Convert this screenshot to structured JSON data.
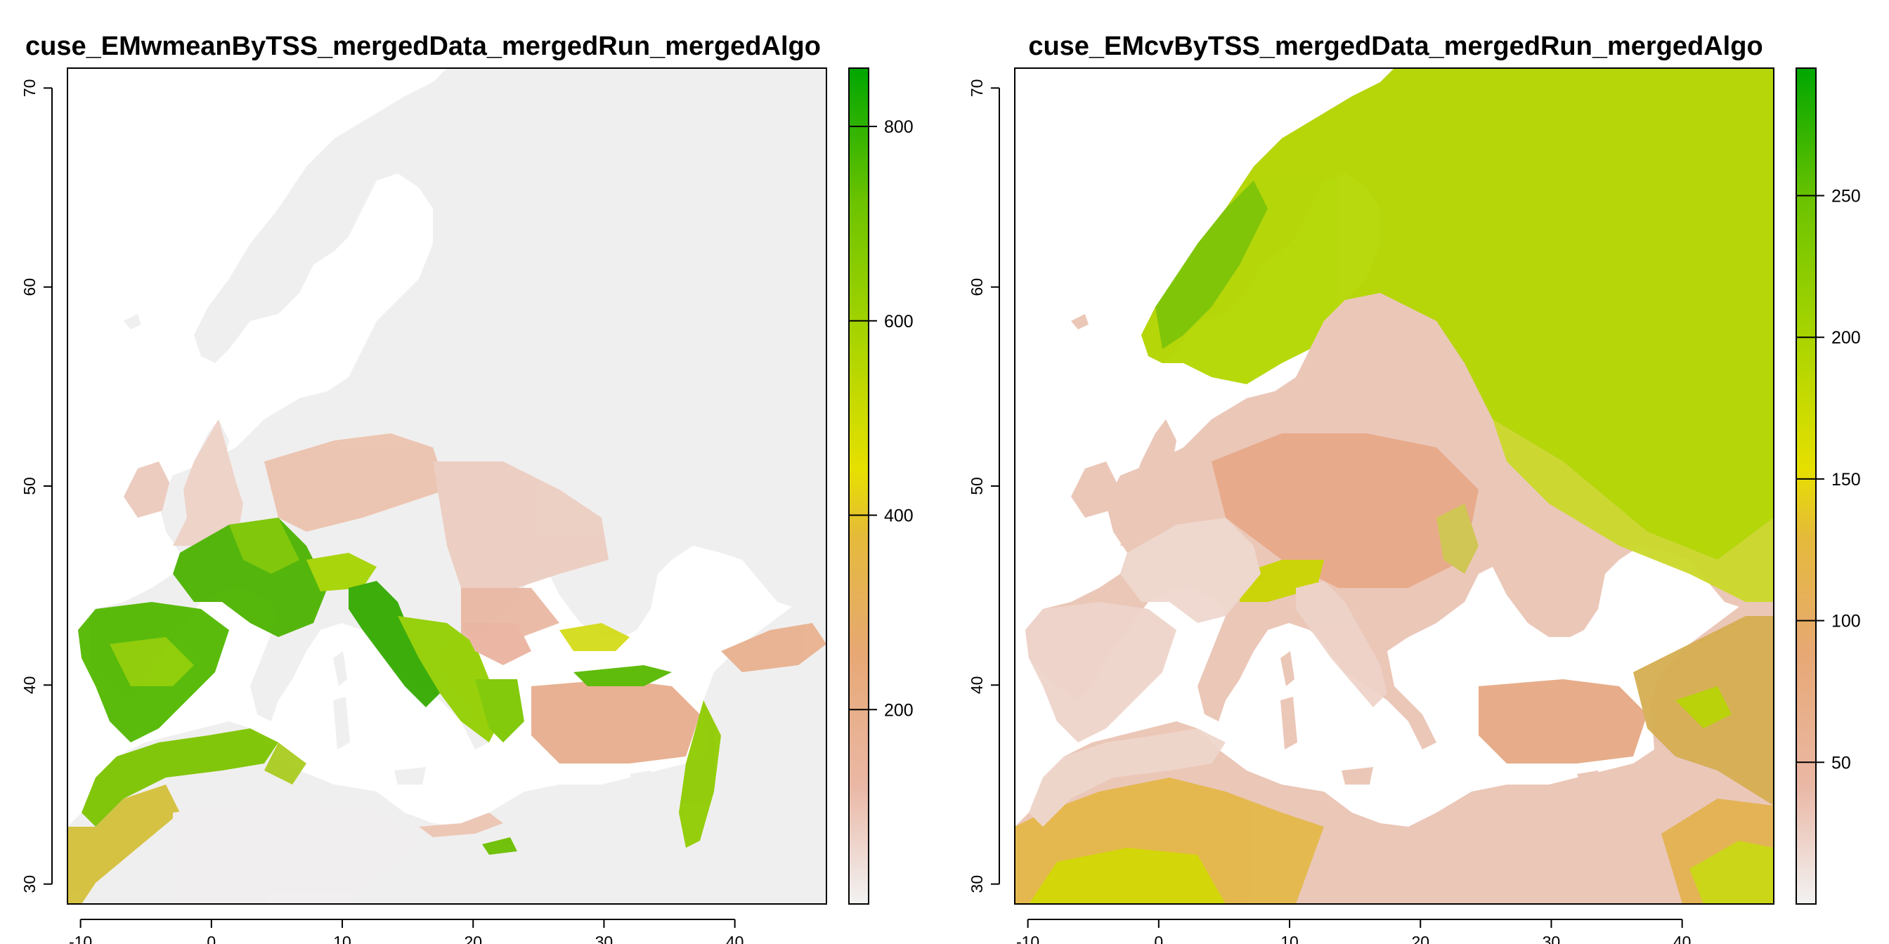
{
  "chart_data": [
    {
      "type": "heatmap",
      "title": "cuse_EMwmeanByTSS_mergedData_mergedRun_mergedAlgo",
      "xlabel": "",
      "ylabel": "",
      "xlim": [
        -11,
        47
      ],
      "ylim": [
        29,
        71
      ],
      "x_ticks": [
        -10,
        0,
        10,
        20,
        30,
        40
      ],
      "y_ticks": [
        30,
        40,
        50,
        60,
        70
      ],
      "legend": {
        "position": "right",
        "range": [
          0,
          860
        ],
        "ticks": [
          200,
          400,
          600,
          800
        ],
        "palette": [
          "#f2f2f2",
          "#eab8a6",
          "#e7a874",
          "#e5ba3a",
          "#e6e000",
          "#a8d400",
          "#6cc300",
          "#00a600"
        ]
      },
      "pattern": "high values in Iberia, France, Italy, Balkan coasts, Black Sea coast; low values in north and east",
      "projection_note": "raster of Europe / North Africa, longitude vs latitude"
    },
    {
      "type": "heatmap",
      "title": "cuse_EMcvByTSS_mergedData_mergedRun_mergedAlgo",
      "xlabel": "",
      "ylabel": "",
      "xlim": [
        -11,
        47
      ],
      "ylim": [
        29,
        71
      ],
      "x_ticks": [
        -10,
        0,
        10,
        20,
        30,
        40
      ],
      "y_ticks": [
        30,
        40,
        50,
        60,
        70
      ],
      "legend": {
        "position": "right",
        "range": [
          0,
          295
        ],
        "ticks": [
          50,
          100,
          150,
          200,
          250
        ],
        "palette": [
          "#f2f2f2",
          "#eab8a6",
          "#e7a874",
          "#e5ba3a",
          "#e6e000",
          "#a8d400",
          "#6cc300",
          "#00a600"
        ]
      },
      "pattern": "high values in Scandinavia, Finland, Russia and Sahara; low values in western/southern Europe",
      "projection_note": "raster of Europe / North Africa, longitude vs latitude"
    }
  ]
}
